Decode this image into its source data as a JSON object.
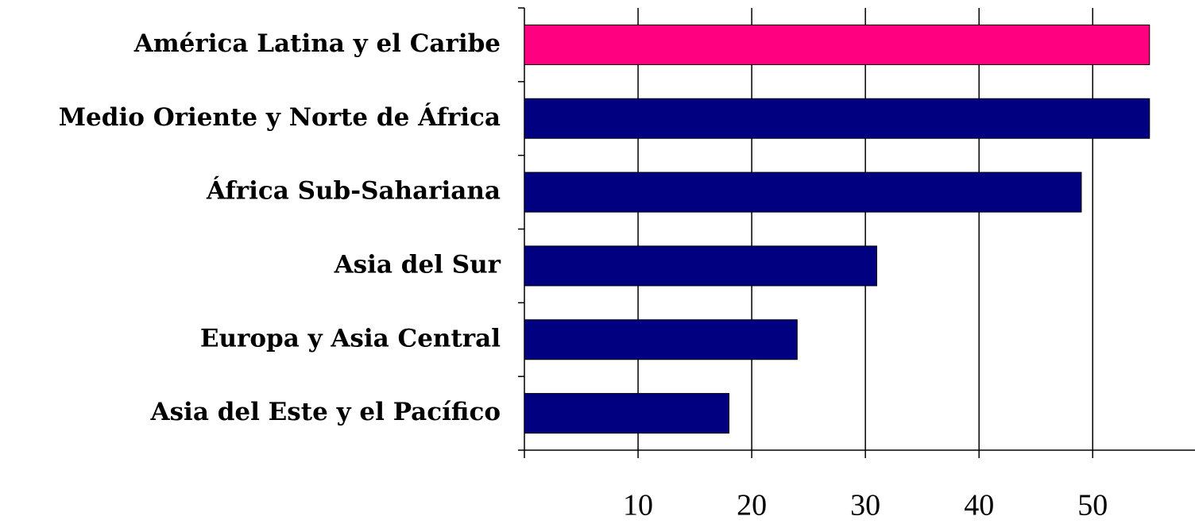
{
  "chart_data": {
    "type": "bar",
    "orientation": "horizontal",
    "categories": [
      "América Latina y el Caribe",
      "Medio Oriente y Norte de África",
      "África Sub-Sahariana",
      "Asia del Sur",
      "Europa y Asia Central",
      "Asia del Este y el Pacífico"
    ],
    "values": [
      55,
      55,
      49,
      31,
      24,
      18
    ],
    "colors": [
      "#ff0080",
      "#000080",
      "#000080",
      "#000080",
      "#000080",
      "#000080"
    ],
    "xlim": [
      0,
      59
    ],
    "xticks": [
      10,
      20,
      30,
      40,
      50
    ],
    "grid": true
  }
}
